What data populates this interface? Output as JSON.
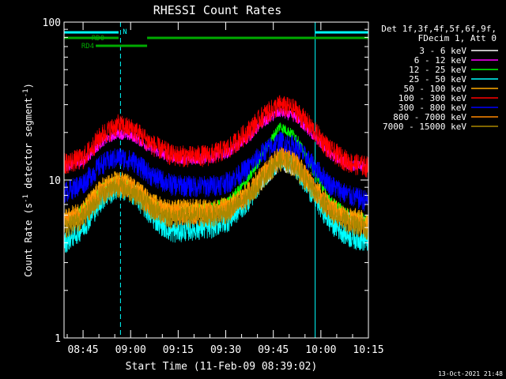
{
  "chart_data": {
    "type": "line",
    "title": "RHESSI Count Rates",
    "xlabel": "Start Time (11-Feb-09 08:39:02)",
    "ylabel_main": "Count Rate (s",
    "ylabel_sup1": "-1",
    "ylabel_mid": " detector segment",
    "ylabel_sup2": "-1",
    "ylabel_end": ")",
    "xrange_min": [
      0,
      96
    ],
    "yscale": "log",
    "ylim": [
      1,
      100
    ],
    "x_ticks": [
      {
        "label": "08:45",
        "min": 6
      },
      {
        "label": "09:00",
        "min": 21
      },
      {
        "label": "09:15",
        "min": 36
      },
      {
        "label": "09:30",
        "min": 51
      },
      {
        "label": "09:45",
        "min": 66
      },
      {
        "label": "10:00",
        "min": 81
      },
      {
        "label": "10:15",
        "min": 96
      }
    ],
    "y_ticks": [
      {
        "label": "1",
        "value": 1
      },
      {
        "label": "10",
        "value": 10
      },
      {
        "label": "100",
        "value": 100
      }
    ],
    "legend": {
      "position": "right",
      "header1": "Det 1f,3f,4f,5f,6f,9f,",
      "header2": "FDecim 1, Att 0"
    },
    "series": [
      {
        "name": "3 - 6 keV",
        "color": "#ffffff",
        "points": [
          [
            0,
            5.5
          ],
          [
            6,
            6.4
          ],
          [
            12,
            8.8
          ],
          [
            17,
            9.9
          ],
          [
            22,
            9.0
          ],
          [
            28,
            7.0
          ],
          [
            34,
            6.4
          ],
          [
            40,
            6.5
          ],
          [
            46,
            6.4
          ],
          [
            52,
            6.6
          ],
          [
            58,
            7.8
          ],
          [
            63,
            9.6
          ],
          [
            68,
            12.5
          ],
          [
            73,
            11.4
          ],
          [
            79,
            8.2
          ],
          [
            84,
            6.5
          ],
          [
            90,
            5.8
          ],
          [
            96,
            5.4
          ]
        ]
      },
      {
        "name": "6 - 12 keV",
        "color": "#ff00ff",
        "points": [
          [
            0,
            12.2
          ],
          [
            6,
            13.0
          ],
          [
            12,
            17.5
          ],
          [
            17,
            19.8
          ],
          [
            22,
            18.8
          ],
          [
            28,
            15.5
          ],
          [
            34,
            13.8
          ],
          [
            40,
            13.5
          ],
          [
            46,
            13.8
          ],
          [
            52,
            15.0
          ],
          [
            58,
            18.5
          ],
          [
            63,
            23.5
          ],
          [
            68,
            27.0
          ],
          [
            73,
            25.0
          ],
          [
            79,
            18.8
          ],
          [
            84,
            14.5
          ],
          [
            90,
            12.5
          ],
          [
            96,
            12.0
          ]
        ]
      },
      {
        "name": "12 - 25 keV",
        "color": "#00ff00",
        "points": [
          [
            0,
            5.6
          ],
          [
            6,
            6.5
          ],
          [
            12,
            8.9
          ],
          [
            17,
            10.0
          ],
          [
            22,
            9.0
          ],
          [
            28,
            7.0
          ],
          [
            34,
            6.4
          ],
          [
            40,
            6.6
          ],
          [
            46,
            6.6
          ],
          [
            52,
            7.4
          ],
          [
            58,
            10.0
          ],
          [
            63,
            15.0
          ],
          [
            68,
            22.0
          ],
          [
            73,
            19.0
          ],
          [
            79,
            11.0
          ],
          [
            84,
            7.4
          ],
          [
            90,
            6.0
          ],
          [
            96,
            5.6
          ]
        ]
      },
      {
        "name": "25 - 50 keV",
        "color": "#00ffff",
        "points": [
          [
            0,
            4.0
          ],
          [
            6,
            5.0
          ],
          [
            12,
            7.6
          ],
          [
            17,
            9.0
          ],
          [
            22,
            8.2
          ],
          [
            28,
            5.8
          ],
          [
            34,
            4.7
          ],
          [
            40,
            4.9
          ],
          [
            46,
            5.0
          ],
          [
            52,
            5.6
          ],
          [
            58,
            7.4
          ],
          [
            63,
            10.5
          ],
          [
            68,
            13.8
          ],
          [
            73,
            12.2
          ],
          [
            79,
            7.8
          ],
          [
            84,
            5.4
          ],
          [
            90,
            4.4
          ],
          [
            96,
            4.1
          ]
        ]
      },
      {
        "name": "50 - 100 keV",
        "color": "#ffaa00",
        "points": [
          [
            0,
            5.6
          ],
          [
            6,
            6.5
          ],
          [
            12,
            9.0
          ],
          [
            17,
            10.0
          ],
          [
            22,
            9.1
          ],
          [
            28,
            7.1
          ],
          [
            34,
            6.5
          ],
          [
            40,
            6.6
          ],
          [
            46,
            6.5
          ],
          [
            52,
            6.8
          ],
          [
            58,
            8.4
          ],
          [
            63,
            11.2
          ],
          [
            68,
            14.5
          ],
          [
            73,
            13.2
          ],
          [
            79,
            9.0
          ],
          [
            84,
            6.8
          ],
          [
            90,
            5.8
          ],
          [
            96,
            5.5
          ]
        ]
      },
      {
        "name": "100 - 300 keV",
        "color": "#ff0000",
        "points": [
          [
            0,
            12.8
          ],
          [
            6,
            13.8
          ],
          [
            12,
            19.5
          ],
          [
            17,
            22.5
          ],
          [
            22,
            21.0
          ],
          [
            28,
            16.8
          ],
          [
            34,
            14.5
          ],
          [
            40,
            14.2
          ],
          [
            46,
            14.5
          ],
          [
            52,
            16.0
          ],
          [
            58,
            20.5
          ],
          [
            63,
            26.0
          ],
          [
            68,
            30.0
          ],
          [
            73,
            28.0
          ],
          [
            79,
            20.5
          ],
          [
            84,
            15.5
          ],
          [
            90,
            13.0
          ],
          [
            96,
            12.2
          ]
        ]
      },
      {
        "name": "300 - 800 keV",
        "color": "#0000ff",
        "points": [
          [
            0,
            8.4
          ],
          [
            6,
            9.6
          ],
          [
            12,
            12.8
          ],
          [
            17,
            14.0
          ],
          [
            22,
            13.2
          ],
          [
            28,
            10.6
          ],
          [
            34,
            9.4
          ],
          [
            40,
            9.2
          ],
          [
            46,
            9.2
          ],
          [
            52,
            9.8
          ],
          [
            58,
            12.0
          ],
          [
            63,
            15.2
          ],
          [
            68,
            17.6
          ],
          [
            73,
            16.4
          ],
          [
            79,
            12.2
          ],
          [
            84,
            9.4
          ],
          [
            90,
            8.0
          ],
          [
            96,
            7.4
          ]
        ]
      },
      {
        "name": "800 - 7000 keV",
        "color": "#ff8800",
        "points": [
          [
            0,
            5.3
          ],
          [
            6,
            6.2
          ],
          [
            12,
            8.6
          ],
          [
            17,
            9.6
          ],
          [
            22,
            8.8
          ],
          [
            28,
            6.8
          ],
          [
            34,
            6.1
          ],
          [
            40,
            6.2
          ],
          [
            46,
            6.2
          ],
          [
            52,
            6.6
          ],
          [
            58,
            8.2
          ],
          [
            63,
            11.0
          ],
          [
            68,
            14.2
          ],
          [
            73,
            12.8
          ],
          [
            79,
            8.8
          ],
          [
            84,
            6.6
          ],
          [
            90,
            5.6
          ],
          [
            96,
            5.2
          ]
        ]
      },
      {
        "name": "7000 - 15000 keV",
        "color": "#aa8800",
        "points": [
          [
            0,
            5.0
          ],
          [
            6,
            5.8
          ],
          [
            12,
            8.2
          ],
          [
            17,
            9.2
          ],
          [
            22,
            8.4
          ],
          [
            28,
            6.5
          ],
          [
            34,
            5.8
          ],
          [
            40,
            5.9
          ],
          [
            46,
            5.9
          ],
          [
            52,
            6.3
          ],
          [
            58,
            7.8
          ],
          [
            63,
            10.5
          ],
          [
            68,
            13.5
          ],
          [
            73,
            12.2
          ],
          [
            79,
            8.4
          ],
          [
            84,
            6.3
          ],
          [
            90,
            5.3
          ],
          [
            96,
            4.9
          ]
        ]
      }
    ],
    "vlines": [
      {
        "min": 17.8,
        "style": "dashed",
        "color": "#00ffff"
      },
      {
        "min": 79.2,
        "style": "solid",
        "color": "#00ffff"
      },
      {
        "min": 96,
        "style": "dashed",
        "color": "#00ffff"
      }
    ],
    "status_bars": [
      {
        "label": "N",
        "color": "#00ffff",
        "row": 0,
        "segments": [
          [
            0,
            17.2
          ],
          [
            79.2,
            96
          ]
        ]
      },
      {
        "label": "RD0",
        "color": "#00aa00",
        "row": 1,
        "segments": [
          [
            0,
            17.2
          ],
          [
            26.2,
            96
          ]
        ]
      },
      {
        "label": "RD4",
        "color": "#00aa00",
        "row": 2,
        "segments": [
          [
            10,
            26.2
          ]
        ]
      }
    ]
  },
  "footer": {
    "timestamp": "13-Oct-2021 21:48"
  }
}
